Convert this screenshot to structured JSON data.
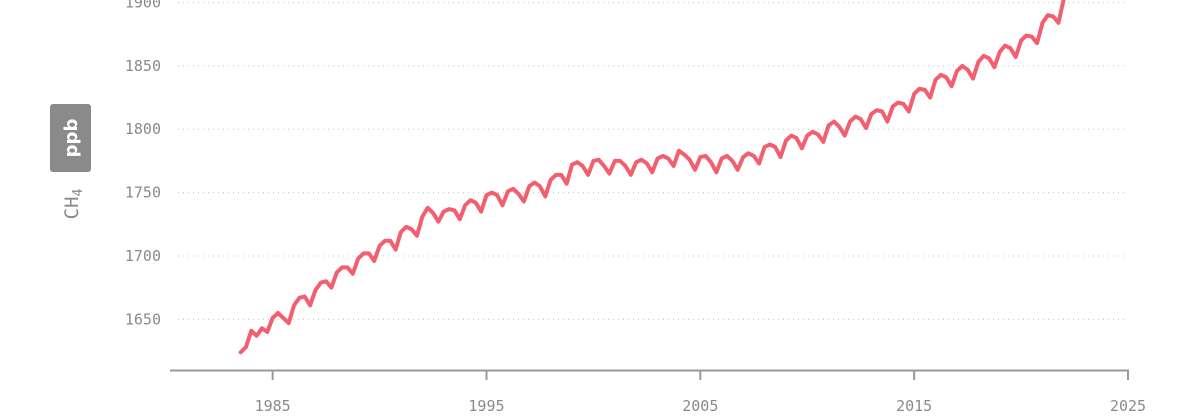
{
  "chart_data": {
    "type": "line",
    "title": "",
    "xlabel": "",
    "ylabel": "CH",
    "ylabel_subscript": "4",
    "unit_badge": "ppb",
    "xlim": [
      1980.2,
      2025
    ],
    "ylim": [
      1610,
      1902
    ],
    "grid": true,
    "x_ticks": [
      "1985",
      "1995",
      "2005",
      "2015",
      "2025"
    ],
    "y_ticks": [
      "1900",
      "1850",
      "1800",
      "1750",
      "1700",
      "1650"
    ],
    "colors": {
      "line": "#f2606f",
      "axis": "#999999",
      "grid": "#c8c8c8",
      "text": "#8a8a8a",
      "badge": "#8a8a8a"
    },
    "series": [
      {
        "x": [
          1983.5,
          1983.75,
          1984.0,
          1984.25,
          1984.5,
          1984.75,
          1985.0,
          1985.25,
          1985.5,
          1985.75,
          1986.0,
          1986.25,
          1986.5,
          1986.75,
          1987.0,
          1987.25,
          1987.5,
          1987.75,
          1988.0,
          1988.25,
          1988.5,
          1988.75,
          1989.0,
          1989.25,
          1989.5,
          1989.75,
          1990.0,
          1990.25,
          1990.5,
          1990.75,
          1991.0,
          1991.25,
          1991.5,
          1991.75,
          1992.0,
          1992.25,
          1992.5,
          1992.75,
          1993.0,
          1993.25,
          1993.5,
          1993.75,
          1994.0,
          1994.25,
          1994.5,
          1994.75,
          1995.0,
          1995.25,
          1995.5,
          1995.75,
          1996.0,
          1996.25,
          1996.5,
          1996.75,
          1997.0,
          1997.25,
          1997.5,
          1997.75,
          1998.0,
          1998.25,
          1998.5,
          1998.75,
          1999.0,
          1999.25,
          1999.5,
          1999.75,
          2000.0,
          2000.25,
          2000.5,
          2000.75,
          2001.0,
          2001.25,
          2001.5,
          2001.75,
          2002.0,
          2002.25,
          2002.5,
          2002.75,
          2003.0,
          2003.25,
          2003.5,
          2003.75,
          2004.0,
          2004.25,
          2004.5,
          2004.75,
          2005.0,
          2005.25,
          2005.5,
          2005.75,
          2006.0,
          2006.25,
          2006.5,
          2006.75,
          2007.0,
          2007.25,
          2007.5,
          2007.75,
          2008.0,
          2008.25,
          2008.5,
          2008.75,
          2009.0,
          2009.25,
          2009.5,
          2009.75,
          2010.0,
          2010.25,
          2010.5,
          2010.75,
          2011.0,
          2011.25,
          2011.5,
          2011.75,
          2012.0,
          2012.25,
          2012.5,
          2012.75,
          2013.0,
          2013.25,
          2013.5,
          2013.75,
          2014.0,
          2014.25,
          2014.5,
          2014.75,
          2015.0,
          2015.25,
          2015.5,
          2015.75,
          2016.0,
          2016.25,
          2016.5,
          2016.75,
          2017.0,
          2017.25,
          2017.5,
          2017.75,
          2018.0,
          2018.25,
          2018.5,
          2018.75,
          2019.0,
          2019.25,
          2019.5,
          2019.75,
          2020.0,
          2020.25,
          2020.5,
          2020.75,
          2021.0,
          2021.25,
          2021.5,
          2021.75,
          2022.0
        ],
        "values": [
          1624,
          1628,
          1641,
          1637,
          1643,
          1640,
          1651,
          1655,
          1651,
          1647,
          1661,
          1667,
          1668,
          1661,
          1673,
          1679,
          1680,
          1675,
          1687,
          1691,
          1691,
          1686,
          1698,
          1702,
          1702,
          1696,
          1708,
          1712,
          1712,
          1705,
          1719,
          1723,
          1721,
          1716,
          1731,
          1738,
          1734,
          1727,
          1735,
          1737,
          1736,
          1729,
          1740,
          1744,
          1742,
          1735,
          1748,
          1750,
          1748,
          1740,
          1751,
          1753,
          1749,
          1743,
          1755,
          1758,
          1755,
          1747,
          1760,
          1764,
          1764,
          1757,
          1772,
          1774,
          1771,
          1764,
          1775,
          1776,
          1771,
          1765,
          1775,
          1775,
          1771,
          1764,
          1774,
          1776,
          1773,
          1766,
          1777,
          1779,
          1777,
          1771,
          1783,
          1780,
          1776,
          1768,
          1778,
          1779,
          1774,
          1766,
          1777,
          1779,
          1775,
          1768,
          1778,
          1781,
          1779,
          1773,
          1786,
          1788,
          1786,
          1778,
          1791,
          1795,
          1793,
          1785,
          1795,
          1798,
          1796,
          1790,
          1803,
          1806,
          1802,
          1795,
          1806,
          1810,
          1808,
          1801,
          1812,
          1815,
          1814,
          1806,
          1818,
          1821,
          1820,
          1814,
          1828,
          1832,
          1831,
          1825,
          1839,
          1843,
          1841,
          1834,
          1846,
          1850,
          1847,
          1840,
          1853,
          1858,
          1856,
          1849,
          1861,
          1866,
          1864,
          1857,
          1870,
          1874,
          1873,
          1868,
          1884,
          1890,
          1889,
          1884,
          1903
        ]
      }
    ]
  }
}
